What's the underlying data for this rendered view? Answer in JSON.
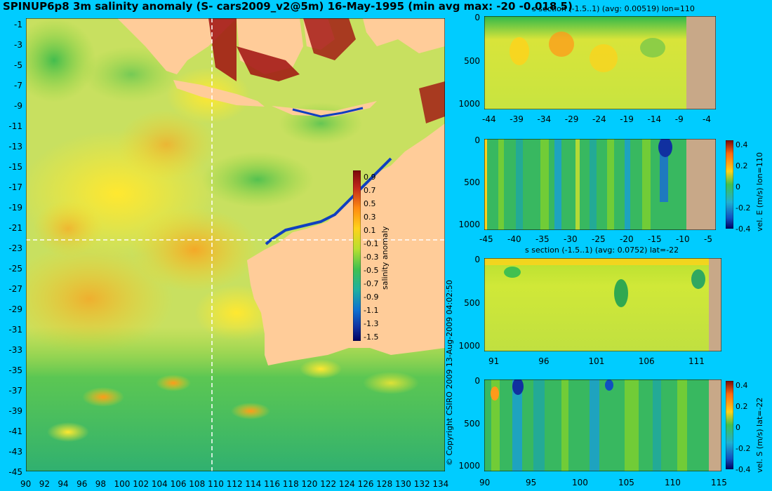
{
  "title": "SPINUP6p8 3m salinity anomaly (S- cars2009_v2@5m) 16-May-1995 (min avg max: -20 -0.018 5)",
  "copyright": "© Copyright CSIRO 2009  13-Aug-2009 04:02:50",
  "map": {
    "lat_labels": [
      "-1",
      "-3",
      "-5",
      "-7",
      "-9",
      "-11",
      "-13",
      "-15",
      "-17",
      "-19",
      "-21",
      "-23",
      "-25",
      "-27",
      "-29",
      "-31",
      "-33",
      "-35",
      "-37",
      "-39",
      "-41",
      "-43",
      "-45"
    ],
    "lon_labels": [
      "90",
      "92",
      "94",
      "96",
      "98",
      "100",
      "102",
      "104",
      "106",
      "108",
      "110",
      "112",
      "114",
      "116",
      "118",
      "120",
      "122",
      "124",
      "126",
      "128",
      "130",
      "132",
      "134"
    ],
    "crosshair": {
      "lon": 110,
      "lat": -22
    },
    "colorbar": {
      "label": "salinity anomaly",
      "ticks": [
        "0.9",
        "0.7",
        "0.5",
        "0.3",
        "0.1",
        "-0.1",
        "-0.3",
        "-0.5",
        "-0.7",
        "-0.9",
        "-1.1",
        "-1.3",
        "-1.5"
      ]
    },
    "colors": {
      "ocean": "#c8e060",
      "land": "#ffcc99"
    }
  },
  "panels": [
    {
      "title": "s section (-1.5..1) (avg: 0.00519) lon=110",
      "y_ticks": [
        "0",
        "500",
        "1000"
      ],
      "x_ticks": [
        "-44",
        "-39",
        "-34",
        "-29",
        "-24",
        "-19",
        "-14",
        "-9",
        "-4"
      ],
      "side_label": "",
      "cbar_ticks": []
    },
    {
      "title": "",
      "y_ticks": [
        "0",
        "500",
        "1000"
      ],
      "x_ticks": [
        "-45",
        "-40",
        "-35",
        "-30",
        "-25",
        "-20",
        "-15",
        "-10",
        "-5"
      ],
      "side_label": "vel. E (m/s) lon=110",
      "cbar_ticks": [
        "0.4",
        "0.2",
        "0",
        "-0.2",
        "-0.4"
      ]
    },
    {
      "title": "s section (-1.5..1) (avg: 0.0752) lat=-22",
      "y_ticks": [
        "0",
        "500",
        "1000"
      ],
      "x_ticks": [
        "91",
        "96",
        "101",
        "106",
        "111"
      ],
      "side_label": "",
      "cbar_ticks": []
    },
    {
      "title": "",
      "y_ticks": [
        "0",
        "500",
        "1000"
      ],
      "x_ticks": [
        "90",
        "95",
        "100",
        "105",
        "110",
        "115"
      ],
      "side_label": "vel. S (m/s) lat=-22",
      "cbar_ticks": [
        "0.4",
        "0.2",
        "0",
        "-0.2",
        "-0.4"
      ]
    }
  ]
}
